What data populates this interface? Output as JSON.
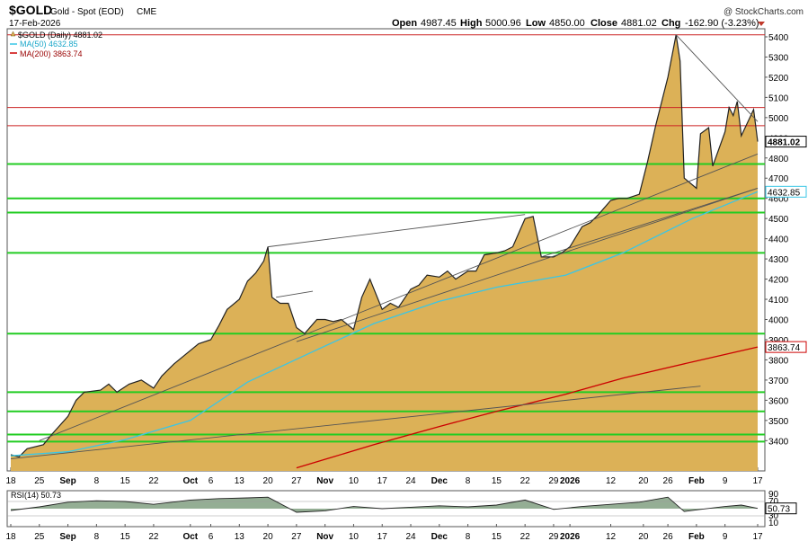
{
  "header": {
    "symbol": "$GOLD",
    "description": "Gold - Spot (EOD)",
    "exchange": "CME",
    "date": "17-Feb-2026",
    "copyright": "@ StockCharts.com",
    "open_label": "Open",
    "open_value": "4987.45",
    "high_label": "High",
    "high_value": "5000.96",
    "low_label": "Low",
    "low_value": "4850.00",
    "close_label": "Close",
    "close_value": "4881.02",
    "chg_label": "Chg",
    "chg_value": "-162.90 (-3.23%)"
  },
  "legend": {
    "price": "$GOLD (Daily) 4881.02",
    "ma50": "MA(50) 4632.85",
    "ma200": "MA(200) 3863.74"
  },
  "colors": {
    "area_fill": "#dcb157",
    "price_line": "#222222",
    "ma50": "#39c6e6",
    "ma200": "#cc0000",
    "green_hline": "#22cc22",
    "red_hline": "#cc2222",
    "trendline": "#555555"
  },
  "chart_data": [
    {
      "type": "area",
      "title": "",
      "x_ticks": [
        "18",
        "25",
        "Sep",
        "8",
        "15",
        "22",
        "Oct",
        "6",
        "13",
        "20",
        "27",
        "Nov",
        "10",
        "17",
        "24",
        "Dec",
        "8",
        "15",
        "22",
        "29",
        "2026",
        "12",
        "20",
        "26",
        "Feb",
        "9",
        "17"
      ],
      "y_ticks": [
        3400,
        3500,
        3600,
        3700,
        3800,
        3900,
        4000,
        4100,
        4200,
        4300,
        4400,
        4500,
        4600,
        4700,
        4800,
        4900,
        5000,
        5100,
        5200,
        5300,
        5400
      ],
      "ylim": [
        3250,
        5440
      ],
      "grid": false,
      "legend_position": "top-left",
      "series": [
        {
          "name": "$GOLD (Daily)",
          "dates": [
            "2025-08-18",
            "2025-08-20",
            "2025-08-22",
            "2025-08-26",
            "2025-08-28",
            "2025-09-01",
            "2025-09-03",
            "2025-09-05",
            "2025-09-09",
            "2025-09-11",
            "2025-09-13",
            "2025-09-16",
            "2025-09-19",
            "2025-09-22",
            "2025-09-24",
            "2025-09-27",
            "2025-09-30",
            "2025-10-03",
            "2025-10-06",
            "2025-10-08",
            "2025-10-10",
            "2025-10-13",
            "2025-10-15",
            "2025-10-17",
            "2025-10-19",
            "2025-10-20",
            "2025-10-21",
            "2025-10-23",
            "2025-10-25",
            "2025-10-27",
            "2025-10-29",
            "2025-11-01",
            "2025-11-03",
            "2025-11-05",
            "2025-11-07",
            "2025-11-10",
            "2025-11-12",
            "2025-11-14",
            "2025-11-17",
            "2025-11-19",
            "2025-11-21",
            "2025-11-24",
            "2025-11-26",
            "2025-11-28",
            "2025-12-01",
            "2025-12-03",
            "2025-12-05",
            "2025-12-08",
            "2025-12-10",
            "2025-12-12",
            "2025-12-15",
            "2025-12-17",
            "2025-12-19",
            "2025-12-22",
            "2025-12-24",
            "2025-12-26",
            "2025-12-29",
            "2025-12-31",
            "2026-01-02",
            "2026-01-05",
            "2026-01-07",
            "2026-01-09",
            "2026-01-12",
            "2026-01-14",
            "2026-01-16",
            "2026-01-19",
            "2026-01-21",
            "2026-01-23",
            "2026-01-26",
            "2026-01-28",
            "2026-01-29",
            "2026-01-30",
            "2026-02-02",
            "2026-02-03",
            "2026-02-05",
            "2026-02-06",
            "2026-02-09",
            "2026-02-10",
            "2026-02-11",
            "2026-02-12",
            "2026-02-13",
            "2026-02-16",
            "2026-02-17"
          ],
          "values": [
            3330,
            3320,
            3360,
            3380,
            3430,
            3520,
            3600,
            3640,
            3650,
            3680,
            3640,
            3680,
            3700,
            3660,
            3720,
            3780,
            3830,
            3880,
            3900,
            3970,
            4050,
            4100,
            4190,
            4230,
            4290,
            4360,
            4110,
            4080,
            4080,
            3960,
            3930,
            4000,
            4000,
            3990,
            4000,
            3950,
            4110,
            4200,
            4050,
            4080,
            4060,
            4150,
            4170,
            4220,
            4210,
            4240,
            4200,
            4240,
            4240,
            4320,
            4330,
            4340,
            4360,
            4500,
            4510,
            4310,
            4310,
            4330,
            4360,
            4460,
            4480,
            4520,
            4590,
            4600,
            4600,
            4620,
            4780,
            4960,
            5200,
            5410,
            5280,
            4700,
            4650,
            4920,
            4950,
            4760,
            4930,
            5050,
            5010,
            5080,
            4910,
            5040,
            4881
          ]
        },
        {
          "name": "MA(50)",
          "dates": [
            "2025-08-18",
            "2025-09-01",
            "2025-09-15",
            "2025-10-01",
            "2025-10-15",
            "2025-11-01",
            "2025-11-15",
            "2025-12-01",
            "2025-12-15",
            "2026-01-01",
            "2026-01-15",
            "2026-02-01",
            "2026-02-17"
          ],
          "values": [
            3325,
            3345,
            3405,
            3500,
            3690,
            3850,
            3980,
            4090,
            4160,
            4220,
            4330,
            4500,
            4632.85
          ]
        },
        {
          "name": "MA(200)",
          "dates": [
            "2025-10-27",
            "2025-11-15",
            "2025-12-01",
            "2025-12-15",
            "2026-01-01",
            "2026-01-15",
            "2026-02-01",
            "2026-02-17"
          ],
          "values": [
            3265,
            3380,
            3470,
            3545,
            3630,
            3710,
            3790,
            3863.74
          ]
        }
      ],
      "horizontal_lines": [
        {
          "value": 5410,
          "color": "red"
        },
        {
          "value": 5050,
          "color": "red"
        },
        {
          "value": 4960,
          "color": "red"
        },
        {
          "value": 4770,
          "color": "green"
        },
        {
          "value": 4600,
          "color": "green"
        },
        {
          "value": 4530,
          "color": "green"
        },
        {
          "value": 4330,
          "color": "green"
        },
        {
          "value": 3930,
          "color": "green"
        },
        {
          "value": 3640,
          "color": "green"
        },
        {
          "value": 3545,
          "color": "green"
        },
        {
          "value": 3430,
          "color": "green"
        },
        {
          "value": 3395,
          "color": "green"
        }
      ],
      "trendlines": [
        {
          "dates": [
            "2025-08-25",
            "2026-02-17"
          ],
          "values": [
            3400,
            4820
          ]
        },
        {
          "dates": [
            "2025-10-27",
            "2026-02-17"
          ],
          "values": [
            3890,
            4650
          ]
        },
        {
          "dates": [
            "2025-08-18",
            "2026-02-03"
          ],
          "values": [
            3310,
            3670
          ]
        },
        {
          "dates": [
            "2025-10-20",
            "2025-12-22"
          ],
          "values": [
            4360,
            4520
          ]
        },
        {
          "dates": [
            "2025-10-22",
            "2025-10-31"
          ],
          "values": [
            4110,
            4140
          ]
        },
        {
          "dates": [
            "2026-01-28",
            "2026-02-17"
          ],
          "values": [
            5410,
            4980
          ]
        },
        {
          "dates": [
            "2025-12-26",
            "2026-02-17"
          ],
          "values": [
            4310,
            4650
          ]
        }
      ],
      "last_value_tags": [
        {
          "label": "4881.02",
          "value": 4881.02
        },
        {
          "label": "4632.85",
          "value": 4632.85
        },
        {
          "label": "3863.74",
          "value": 3863.74
        }
      ]
    },
    {
      "type": "area",
      "title": "",
      "legend": "RSI(14) 50.73",
      "x_ticks": [
        "18",
        "25",
        "Sep",
        "8",
        "15",
        "22",
        "Oct",
        "6",
        "13",
        "20",
        "27",
        "Nov",
        "10",
        "17",
        "24",
        "Dec",
        "8",
        "15",
        "22",
        "29",
        "2026",
        "12",
        "20",
        "26",
        "Feb",
        "9",
        "17"
      ],
      "y_ticks": [
        90,
        70,
        50,
        30,
        10
      ],
      "ylim": [
        0,
        100
      ],
      "series": [
        {
          "name": "RSI(14)",
          "dates": [
            "2025-08-18",
            "2025-08-25",
            "2025-09-01",
            "2025-09-08",
            "2025-09-15",
            "2025-09-22",
            "2025-10-01",
            "2025-10-08",
            "2025-10-15",
            "2025-10-20",
            "2025-10-27",
            "2025-11-03",
            "2025-11-10",
            "2025-11-17",
            "2025-11-24",
            "2025-12-01",
            "2025-12-08",
            "2025-12-15",
            "2025-12-22",
            "2025-12-29",
            "2026-01-05",
            "2026-01-12",
            "2026-01-19",
            "2026-01-26",
            "2026-01-30",
            "2026-02-03",
            "2026-02-09",
            "2026-02-13",
            "2026-02-17"
          ],
          "values": [
            45,
            55,
            68,
            72,
            70,
            62,
            74,
            78,
            80,
            82,
            40,
            44,
            56,
            50,
            54,
            58,
            55,
            60,
            74,
            48,
            56,
            62,
            68,
            82,
            42,
            48,
            56,
            60,
            50.73
          ]
        }
      ],
      "last_value_tags": [
        {
          "label": "50.73",
          "value": 50.73
        }
      ]
    }
  ]
}
